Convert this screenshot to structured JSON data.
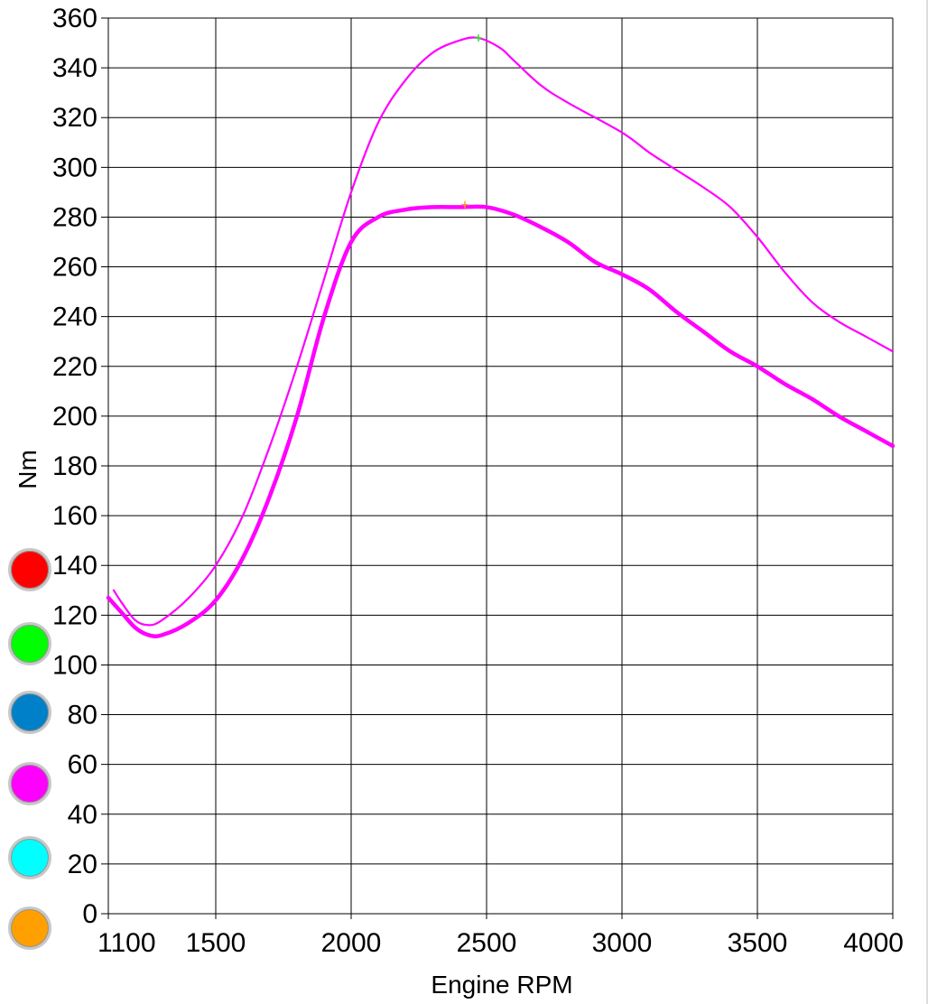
{
  "chart_data": {
    "type": "line",
    "xlabel": "Engine RPM",
    "ylabel": "Nm",
    "xlim": [
      1100,
      4000
    ],
    "ylim": [
      0,
      360
    ],
    "x_ticks": [
      1100,
      1500,
      2000,
      2500,
      3000,
      3500,
      4000
    ],
    "y_ticks": [
      0,
      20,
      40,
      60,
      80,
      100,
      120,
      140,
      160,
      180,
      200,
      220,
      240,
      260,
      280,
      300,
      320,
      340,
      360
    ],
    "grid": true,
    "series": [
      {
        "color": "#ff00ff",
        "line": "thin",
        "points": [
          [
            1120,
            130
          ],
          [
            1150,
            125
          ],
          [
            1200,
            118
          ],
          [
            1250,
            116
          ],
          [
            1300,
            118
          ],
          [
            1400,
            127
          ],
          [
            1500,
            140
          ],
          [
            1600,
            160
          ],
          [
            1700,
            188
          ],
          [
            1800,
            220
          ],
          [
            1900,
            255
          ],
          [
            2000,
            290
          ],
          [
            2100,
            318
          ],
          [
            2200,
            335
          ],
          [
            2300,
            346
          ],
          [
            2400,
            351
          ],
          [
            2470,
            352
          ],
          [
            2550,
            348
          ],
          [
            2600,
            343
          ],
          [
            2700,
            333
          ],
          [
            2800,
            326
          ],
          [
            3000,
            314
          ],
          [
            3100,
            306
          ],
          [
            3200,
            299
          ],
          [
            3300,
            292
          ],
          [
            3400,
            284
          ],
          [
            3500,
            272
          ],
          [
            3600,
            258
          ],
          [
            3700,
            246
          ],
          [
            3800,
            238
          ],
          [
            3900,
            232
          ],
          [
            4000,
            226
          ]
        ]
      },
      {
        "color": "#ff00ff",
        "line": "thick",
        "points": [
          [
            1100,
            127
          ],
          [
            1150,
            121
          ],
          [
            1200,
            115
          ],
          [
            1250,
            112
          ],
          [
            1300,
            112
          ],
          [
            1400,
            117
          ],
          [
            1500,
            126
          ],
          [
            1600,
            143
          ],
          [
            1700,
            168
          ],
          [
            1800,
            200
          ],
          [
            1900,
            240
          ],
          [
            2000,
            270
          ],
          [
            2100,
            280
          ],
          [
            2200,
            283
          ],
          [
            2300,
            284
          ],
          [
            2400,
            284
          ],
          [
            2500,
            284
          ],
          [
            2600,
            281
          ],
          [
            2700,
            276
          ],
          [
            2800,
            270
          ],
          [
            2900,
            262
          ],
          [
            3000,
            257
          ],
          [
            3100,
            251
          ],
          [
            3200,
            242
          ],
          [
            3300,
            234
          ],
          [
            3400,
            226
          ],
          [
            3500,
            220
          ],
          [
            3600,
            213
          ],
          [
            3700,
            207
          ],
          [
            3800,
            200
          ],
          [
            3900,
            194
          ],
          [
            4000,
            188
          ]
        ]
      }
    ],
    "markers": [
      {
        "symbol": "+",
        "color": "#33dd33",
        "x": 2470,
        "y": 352
      },
      {
        "symbol": "+",
        "color": "#ff9933",
        "x": 2420,
        "y": 285
      }
    ]
  },
  "swatches": [
    {
      "name": "red",
      "color": "#ff0000"
    },
    {
      "name": "green",
      "color": "#00ff00"
    },
    {
      "name": "blue",
      "color": "#0080c8"
    },
    {
      "name": "magenta",
      "color": "#ff00ff"
    },
    {
      "name": "cyan",
      "color": "#00ffff"
    },
    {
      "name": "orange",
      "color": "#ffa000"
    }
  ]
}
